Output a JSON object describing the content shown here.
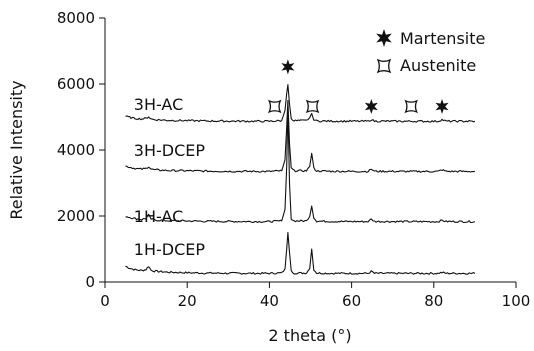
{
  "chart_data": {
    "type": "line",
    "xlabel": "2 theta (°)",
    "ylabel": "Relative Intensity",
    "xlim": [
      0,
      100
    ],
    "ylim": [
      0,
      8000
    ],
    "x_ticks": [
      "0",
      "20",
      "40",
      "60",
      "80",
      "100"
    ],
    "y_ticks": [
      "0",
      "2000",
      "4000",
      "6000",
      "8000"
    ],
    "legend": {
      "position": "top-right",
      "entries": [
        {
          "marker": "filled-star",
          "label": "Martensite"
        },
        {
          "marker": "hollow-square-star",
          "label": "Austenite"
        }
      ]
    },
    "series": [
      {
        "name": "1H-DCEP",
        "label_at": [
          7,
          1000
        ],
        "points": [
          [
            5,
            480
          ],
          [
            6,
            420
          ],
          [
            7,
            380
          ],
          [
            8,
            360
          ],
          [
            9,
            350
          ],
          [
            10,
            380
          ],
          [
            10.6,
            480
          ],
          [
            11.2,
            360
          ],
          [
            12,
            330
          ],
          [
            15,
            300
          ],
          [
            20,
            280
          ],
          [
            25,
            270
          ],
          [
            30,
            265
          ],
          [
            35,
            262
          ],
          [
            40,
            262
          ],
          [
            43,
            275
          ],
          [
            43.8,
            400
          ],
          [
            44.2,
            1000
          ],
          [
            44.5,
            1500
          ],
          [
            44.9,
            900
          ],
          [
            45.3,
            330
          ],
          [
            46,
            270
          ],
          [
            49,
            272
          ],
          [
            49.8,
            400
          ],
          [
            50.3,
            1000
          ],
          [
            50.8,
            380
          ],
          [
            51.5,
            270
          ],
          [
            55,
            262
          ],
          [
            60,
            262
          ],
          [
            64,
            262
          ],
          [
            64.8,
            320
          ],
          [
            65.6,
            262
          ],
          [
            70,
            262
          ],
          [
            75,
            262
          ],
          [
            81,
            262
          ],
          [
            82,
            290
          ],
          [
            83,
            262
          ],
          [
            90,
            262
          ]
        ]
      },
      {
        "name": "1H-AC",
        "label_at": [
          7,
          2000
        ],
        "points": [
          [
            5,
            1990
          ],
          [
            6,
            1960
          ],
          [
            7,
            1930
          ],
          [
            8,
            1910
          ],
          [
            9,
            1900
          ],
          [
            10,
            1930
          ],
          [
            10.6,
            2030
          ],
          [
            11.2,
            1910
          ],
          [
            12,
            1880
          ],
          [
            15,
            1860
          ],
          [
            20,
            1850
          ],
          [
            25,
            1840
          ],
          [
            30,
            1835
          ],
          [
            35,
            1832
          ],
          [
            40,
            1830
          ],
          [
            43,
            1850
          ],
          [
            43.8,
            2200
          ],
          [
            44.2,
            3500
          ],
          [
            44.5,
            5300
          ],
          [
            44.9,
            3000
          ],
          [
            45.3,
            1920
          ],
          [
            46,
            1850
          ],
          [
            49,
            1850
          ],
          [
            49.8,
            2000
          ],
          [
            50.3,
            2300
          ],
          [
            50.8,
            1950
          ],
          [
            51.5,
            1845
          ],
          [
            55,
            1835
          ],
          [
            60,
            1832
          ],
          [
            64,
            1832
          ],
          [
            64.8,
            1900
          ],
          [
            65.6,
            1835
          ],
          [
            70,
            1832
          ],
          [
            75,
            1830
          ],
          [
            81,
            1830
          ],
          [
            82,
            1870
          ],
          [
            83,
            1832
          ],
          [
            90,
            1830
          ]
        ]
      },
      {
        "name": "3H-DCEP",
        "label_at": [
          7,
          4000
        ],
        "points": [
          [
            5,
            3510
          ],
          [
            6,
            3480
          ],
          [
            7,
            3450
          ],
          [
            8,
            3430
          ],
          [
            9,
            3420
          ],
          [
            10,
            3440
          ],
          [
            10.6,
            3500
          ],
          [
            11.2,
            3420
          ],
          [
            12,
            3400
          ],
          [
            15,
            3380
          ],
          [
            20,
            3370
          ],
          [
            25,
            3360
          ],
          [
            30,
            3355
          ],
          [
            35,
            3352
          ],
          [
            40,
            3350
          ],
          [
            43,
            3370
          ],
          [
            43.8,
            3700
          ],
          [
            44.2,
            4700
          ],
          [
            44.5,
            5500
          ],
          [
            44.9,
            4200
          ],
          [
            45.3,
            3450
          ],
          [
            46,
            3370
          ],
          [
            49,
            3370
          ],
          [
            49.8,
            3500
          ],
          [
            50.3,
            3900
          ],
          [
            50.8,
            3450
          ],
          [
            51.5,
            3365
          ],
          [
            55,
            3355
          ],
          [
            60,
            3352
          ],
          [
            64,
            3352
          ],
          [
            64.8,
            3420
          ],
          [
            65.6,
            3355
          ],
          [
            70,
            3352
          ],
          [
            75,
            3350
          ],
          [
            81,
            3350
          ],
          [
            82,
            3400
          ],
          [
            83,
            3352
          ],
          [
            90,
            3350
          ]
        ]
      },
      {
        "name": "3H-AC",
        "label_at": [
          7,
          5400
        ],
        "points": [
          [
            5,
            5020
          ],
          [
            6,
            4990
          ],
          [
            7,
            4960
          ],
          [
            8,
            4950
          ],
          [
            9,
            4940
          ],
          [
            10,
            4960
          ],
          [
            10.6,
            5010
          ],
          [
            11.2,
            4940
          ],
          [
            12,
            4920
          ],
          [
            15,
            4900
          ],
          [
            20,
            4890
          ],
          [
            25,
            4880
          ],
          [
            30,
            4875
          ],
          [
            35,
            4872
          ],
          [
            40,
            4870
          ],
          [
            43,
            4890
          ],
          [
            43.8,
            5200
          ],
          [
            44.2,
            5700
          ],
          [
            44.5,
            5980
          ],
          [
            44.9,
            5400
          ],
          [
            45.3,
            4960
          ],
          [
            46,
            4890
          ],
          [
            49,
            4890
          ],
          [
            49.8,
            4980
          ],
          [
            50.3,
            5080
          ],
          [
            50.8,
            4930
          ],
          [
            51.5,
            4880
          ],
          [
            55,
            4875
          ],
          [
            60,
            4872
          ],
          [
            64,
            4872
          ],
          [
            64.8,
            4920
          ],
          [
            65.6,
            4875
          ],
          [
            70,
            4872
          ],
          [
            75,
            4870
          ],
          [
            81,
            4870
          ],
          [
            82,
            4920
          ],
          [
            83,
            4872
          ],
          [
            90,
            4870
          ]
        ]
      }
    ],
    "peak_markers": [
      {
        "type": "martensite",
        "x": 44.5,
        "y": 6520
      },
      {
        "type": "austenite",
        "x": 41.3,
        "y": 5320
      },
      {
        "type": "austenite",
        "x": 50.5,
        "y": 5320
      },
      {
        "type": "martensite",
        "x": 64.8,
        "y": 5320
      },
      {
        "type": "austenite",
        "x": 74.5,
        "y": 5320
      },
      {
        "type": "martensite",
        "x": 82.0,
        "y": 5320
      }
    ]
  }
}
